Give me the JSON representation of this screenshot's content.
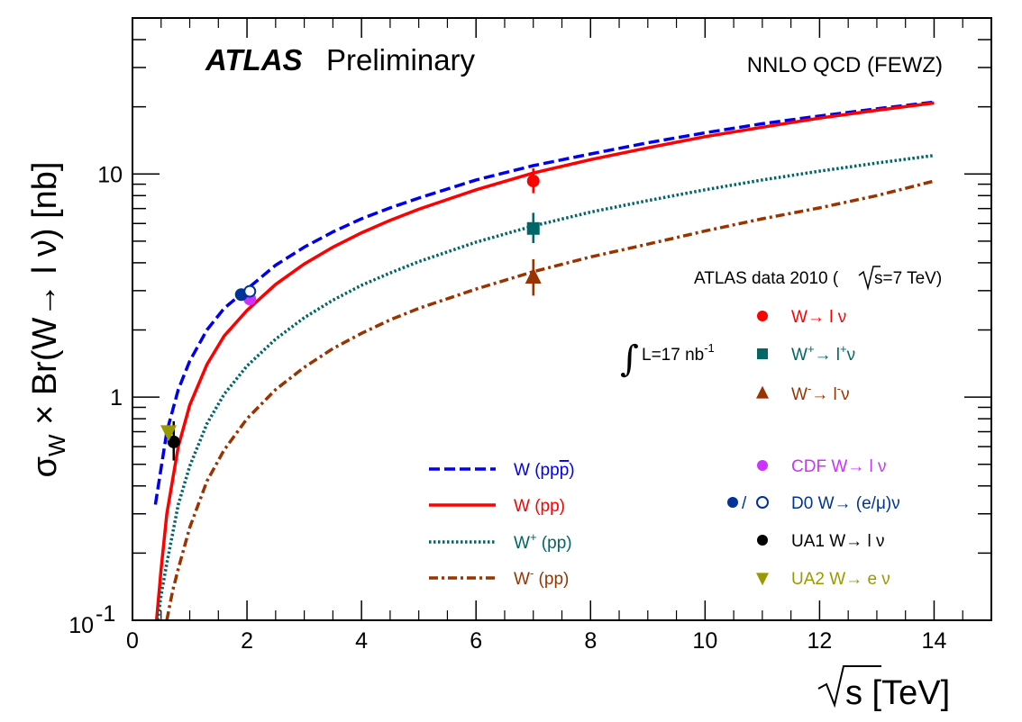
{
  "chart_data": {
    "type": "line",
    "scale": {
      "x": "linear",
      "y": "log"
    },
    "xlim": [
      0,
      15
    ],
    "ylim": [
      0.1,
      50
    ],
    "x_ticks": [
      "0",
      "2",
      "4",
      "6",
      "8",
      "10",
      "12",
      "14"
    ],
    "y_tick_labels": {
      "0.1": "10",
      "0.1_exp": "-1",
      "1": "1",
      "10": "10"
    },
    "xlabel": "s [TeV]",
    "ylabel_parts": {
      "sigma": "σ",
      "sub": "W",
      "rest": " × Br(W→ l ν) [nb]"
    },
    "header": {
      "atlas": "ATLAS",
      "preliminary": "Preliminary",
      "theory": "NNLO QCD (FEWZ)"
    },
    "data_title": "ATLAS data 2010 (",
    "data_title_sqrt": "s=7 TeV)",
    "lumi": {
      "integral": "∫",
      "text": "L=17 nb",
      "exp": "-1"
    },
    "series": [
      {
        "name": "W (pp̄)",
        "color": "#0000ee",
        "style": "dash",
        "x": [
          0.4,
          0.6,
          0.8,
          1.0,
          1.3,
          1.6,
          2.0,
          2.5,
          3.0,
          3.5,
          4.0,
          4.5,
          5.0,
          6.0,
          7.0,
          8.0,
          9.0,
          10.0,
          11.0,
          12.0,
          13.0,
          14.0
        ],
        "values": [
          0.33,
          0.7,
          1.08,
          1.45,
          2.0,
          2.5,
          3.05,
          3.9,
          4.7,
          5.5,
          6.3,
          7.05,
          7.8,
          9.4,
          10.9,
          12.3,
          13.8,
          15.3,
          16.8,
          18.2,
          19.6,
          21.0
        ]
      },
      {
        "name": "W (pp)",
        "color": "#ff0000",
        "style": "solid",
        "x": [
          0.42,
          0.5,
          0.6,
          0.8,
          1.0,
          1.3,
          1.6,
          2.0,
          2.5,
          3.0,
          3.5,
          4.0,
          4.5,
          5.0,
          6.0,
          7.0,
          8.0,
          9.0,
          10.0,
          11.0,
          12.0,
          13.0,
          14.0
        ],
        "values": [
          0.1,
          0.17,
          0.3,
          0.6,
          0.92,
          1.4,
          1.88,
          2.45,
          3.2,
          3.95,
          4.7,
          5.45,
          6.2,
          6.95,
          8.5,
          10.1,
          11.6,
          13.1,
          14.7,
          16.2,
          17.8,
          19.3,
          20.8
        ]
      },
      {
        "name": "W⁺ (pp)",
        "color": "#006666",
        "style": "dot",
        "x": [
          0.44,
          0.5,
          0.6,
          0.8,
          1.0,
          1.3,
          1.6,
          2.0,
          2.5,
          3.0,
          3.5,
          4.0,
          4.5,
          5.0,
          6.0,
          7.0,
          8.0,
          9.0,
          10.0,
          11.0,
          12.0,
          13.0,
          14.0
        ],
        "values": [
          0.1,
          0.13,
          0.18,
          0.33,
          0.49,
          0.76,
          1.03,
          1.38,
          1.82,
          2.27,
          2.72,
          3.17,
          3.6,
          4.05,
          4.95,
          5.85,
          6.75,
          7.6,
          8.5,
          9.4,
          10.3,
          11.2,
          12.1
        ]
      },
      {
        "name": "W⁻ (pp)",
        "color": "#993300",
        "style": "dashdot",
        "x": [
          0.6,
          0.7,
          0.8,
          1.0,
          1.3,
          1.6,
          2.0,
          2.5,
          3.0,
          3.5,
          4.0,
          4.5,
          5.0,
          6.0,
          7.0,
          8.0,
          9.0,
          10.0,
          11.0,
          12.0,
          13.0,
          14.0
        ],
        "values": [
          0.1,
          0.135,
          0.17,
          0.26,
          0.42,
          0.58,
          0.8,
          1.08,
          1.36,
          1.65,
          1.93,
          2.22,
          2.5,
          3.05,
          3.65,
          4.25,
          4.85,
          5.55,
          6.3,
          7.05,
          8.0,
          9.3
        ]
      }
    ],
    "points": [
      {
        "key": "atlas_w",
        "label": "W→ l ν",
        "sup1": "",
        "sup2": "",
        "x": 7.0,
        "y": 9.3,
        "err": [
          8.2,
          10.6
        ],
        "color": "#ff0000",
        "marker": "circle"
      },
      {
        "key": "atlas_wplus",
        "label_a": "W",
        "sup1": "+",
        "label_b": "→ l",
        "sup2": "+",
        "label_c": "ν",
        "x": 7.0,
        "y": 5.7,
        "err": [
          4.9,
          6.7
        ],
        "color": "#006666",
        "marker": "square"
      },
      {
        "key": "atlas_wminus",
        "label_a": "W",
        "sup1": "-",
        "label_b": "→ l",
        "sup2": "-",
        "label_c": "ν",
        "x": 7.0,
        "y": 3.45,
        "err": [
          2.85,
          4.15
        ],
        "color": "#993300",
        "marker": "triangle-up"
      },
      {
        "key": "cdf",
        "label": "CDF W→ l ν",
        "x": 2.05,
        "y": 2.75,
        "err": null,
        "color": "#cc33ff",
        "marker": "circle"
      },
      {
        "key": "d0_e",
        "label": "D0 W→ (e/μ)ν",
        "x": 1.9,
        "y": 2.88,
        "err": null,
        "color": "#003399",
        "marker": "circle"
      },
      {
        "key": "d0_mu",
        "label": "",
        "x": 2.05,
        "y": 2.98,
        "err": null,
        "color": "#003399",
        "marker": "open-circle"
      },
      {
        "key": "ua1",
        "label": "UA1 W→ l ν",
        "x": 0.72,
        "y": 0.63,
        "err": [
          0.52,
          0.78
        ],
        "color": "#000000",
        "marker": "circle"
      },
      {
        "key": "ua2",
        "label": "UA2 W→ e ν",
        "x": 0.63,
        "y": 0.7,
        "err": null,
        "color": "#999900",
        "marker": "triangle-down"
      }
    ],
    "legend_lines": [
      {
        "name": "W (pp",
        "bar": "p",
        "close": ")",
        "color": "#0000ee",
        "style": "dash"
      },
      {
        "name": "W (pp)",
        "color": "#ff0000",
        "style": "solid"
      },
      {
        "name_a": "W",
        "sup": "+",
        "name_b": " (pp)",
        "color": "#006666",
        "style": "dot"
      },
      {
        "name_a": "W",
        "sup": "-",
        "name_b": " (pp)",
        "color": "#993300",
        "style": "dashdot"
      }
    ],
    "d0_separator": "/"
  }
}
